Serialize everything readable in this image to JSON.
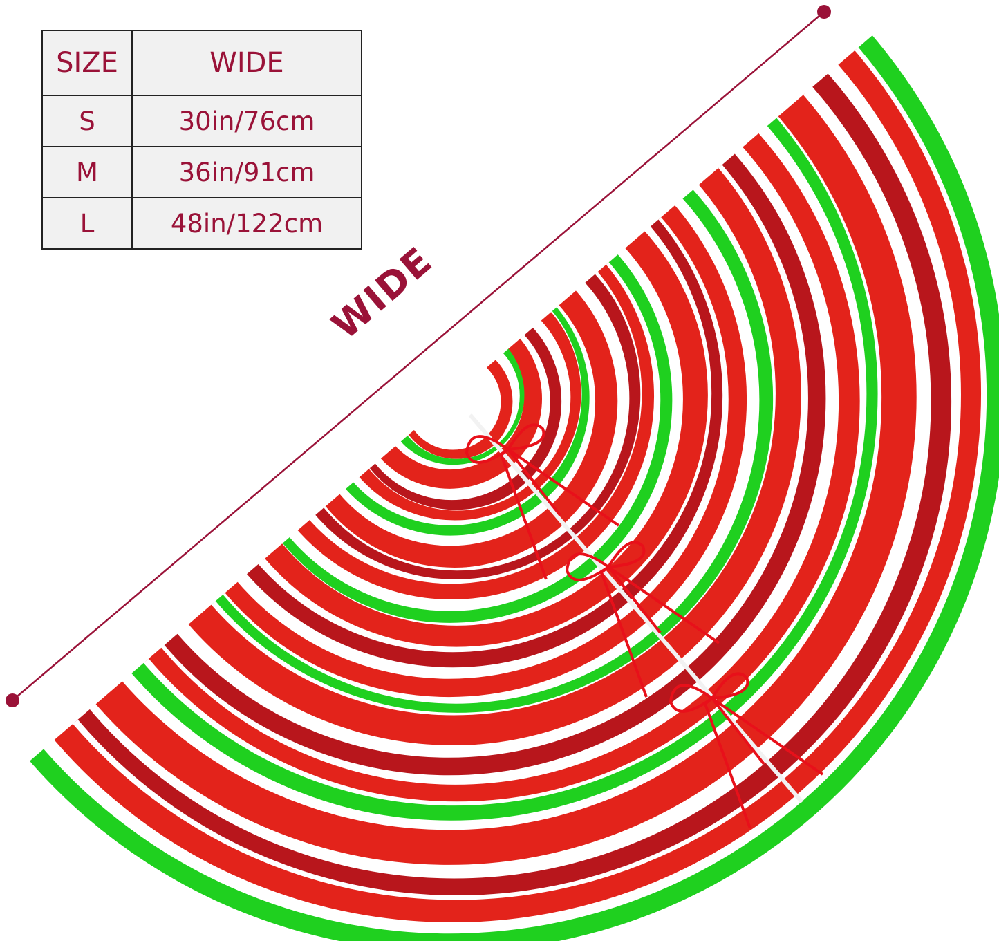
{
  "size_table": {
    "headers": [
      "SIZE",
      "WIDE"
    ],
    "rows": [
      {
        "size": "S",
        "wide": "30in/76cm"
      },
      {
        "size": "M",
        "wide": "36in/91cm"
      },
      {
        "size": "L",
        "wide": "48in/122cm"
      }
    ]
  },
  "dimension_label": "WIDE",
  "colors": {
    "accent": "#9a1238",
    "stripe_red": "#e3231b",
    "stripe_dark_red": "#b8161c",
    "stripe_green": "#1fd01f",
    "stripe_white": "#ffffff",
    "ribbon": "#e8101a"
  }
}
